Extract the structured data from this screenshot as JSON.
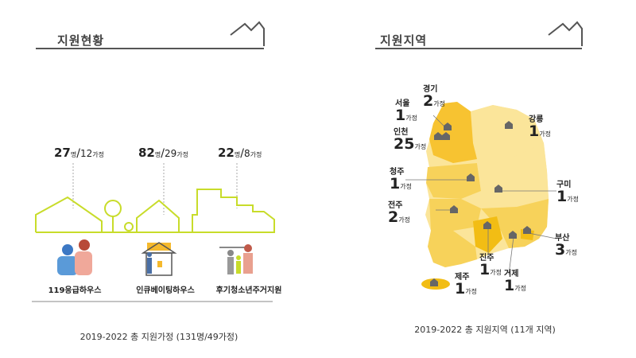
{
  "left": {
    "title": "지원현황",
    "stats": [
      {
        "persons": "27",
        "persons_unit": "명",
        "families": "12",
        "families_unit": "가정"
      },
      {
        "persons": "82",
        "persons_unit": "명",
        "families": "29",
        "families_unit": "가정"
      },
      {
        "persons": "22",
        "persons_unit": "명",
        "families": "8",
        "families_unit": "가정"
      }
    ],
    "houses": [
      "119응급하우스",
      "인큐베이팅하우스",
      "후기청소년주거지원"
    ],
    "caption": "2019-2022 총 지원가정 (131명/49가정)"
  },
  "right": {
    "title": "지원지역",
    "cities": [
      {
        "name": "경기",
        "count": "2",
        "unit": "가정"
      },
      {
        "name": "서울",
        "count": "1",
        "unit": "가정"
      },
      {
        "name": "인천",
        "count": "25",
        "unit": "가정"
      },
      {
        "name": "강릉",
        "count": "1",
        "unit": "가정"
      },
      {
        "name": "청주",
        "count": "1",
        "unit": "가정"
      },
      {
        "name": "구미",
        "count": "1",
        "unit": "가정"
      },
      {
        "name": "전주",
        "count": "2",
        "unit": "가정"
      },
      {
        "name": "부산",
        "count": "3",
        "unit": "가정"
      },
      {
        "name": "진주",
        "count": "1",
        "unit": "가정"
      },
      {
        "name": "거제",
        "count": "1",
        "unit": "가정"
      },
      {
        "name": "제주",
        "count": "1",
        "unit": "가정"
      }
    ],
    "caption": "2019-2022 총 지원지역 (11개 지역)"
  },
  "colors": {
    "accent_green": "#c8dc2a",
    "map_light": "#fbe59a",
    "map_mid": "#f7d25a",
    "map_dark": "#f2bd14",
    "pin": "#666666"
  }
}
